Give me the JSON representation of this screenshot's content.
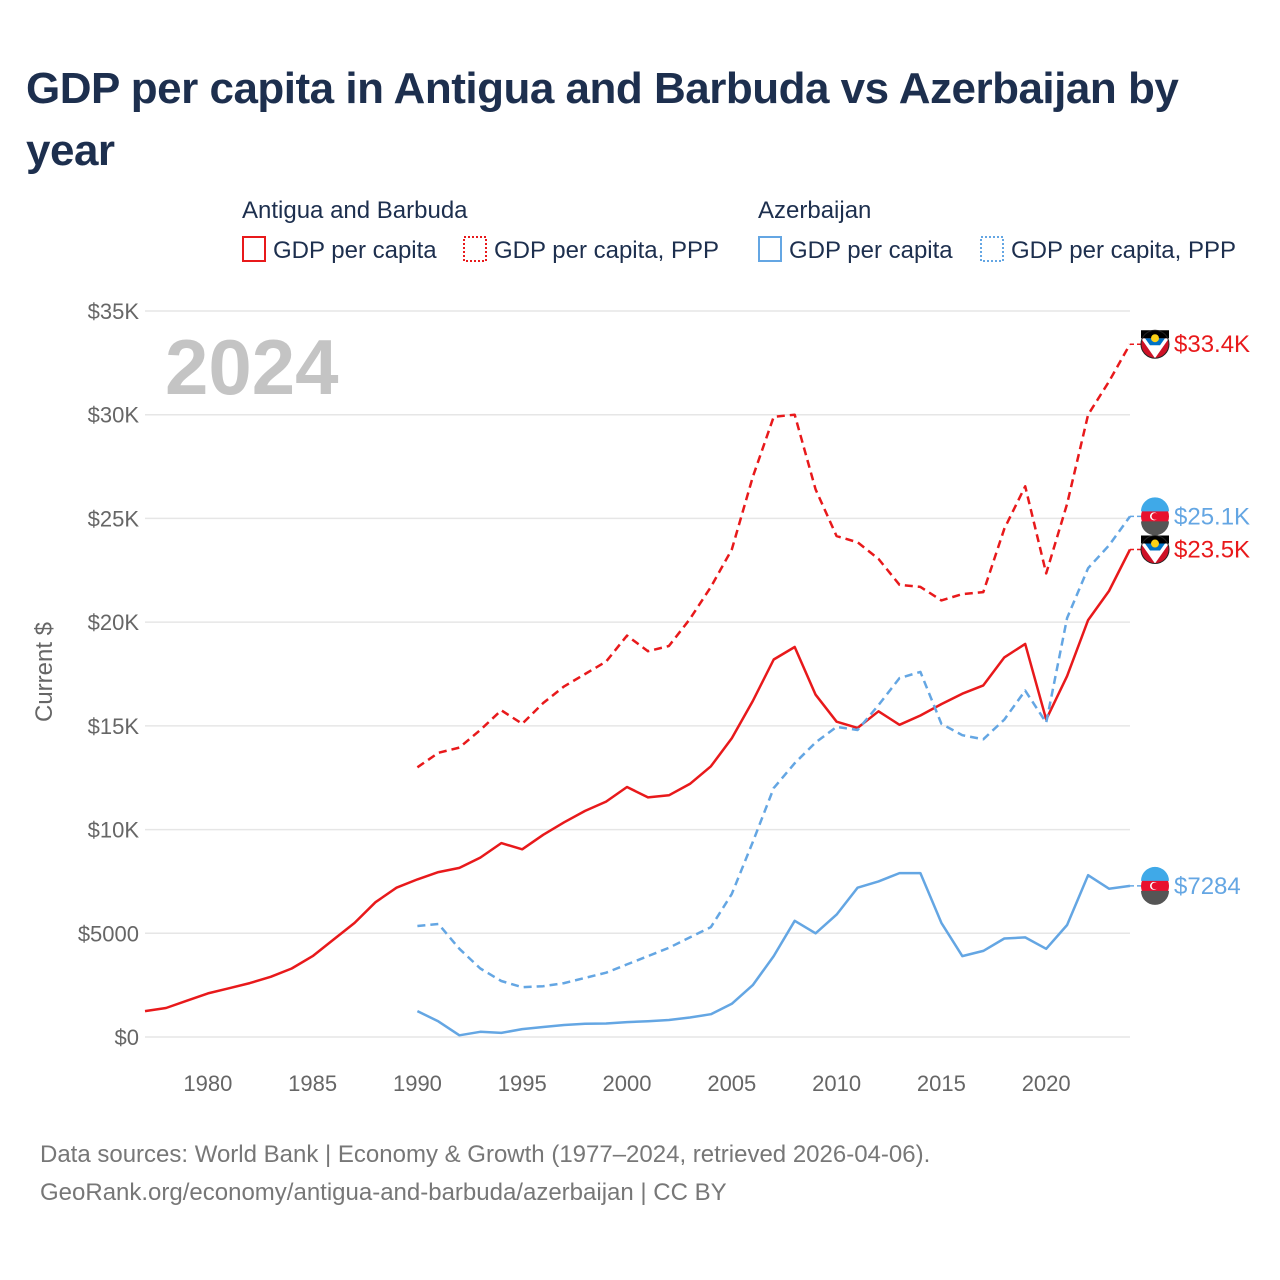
{
  "title": "GDP per capita in Antigua and Barbuda vs Azerbaijan by year",
  "year_overlay": "2024",
  "footer": {
    "line1": "Data sources: World Bank | Economy & Growth (1977–2024, retrieved 2026-04-06).",
    "line2": "GeoRank.org/economy/antigua-and-barbuda/azerbaijan | CC BY"
  },
  "colors": {
    "antigua": "#e8191b",
    "azerbaijan": "#64a6e3",
    "grid": "#e6e6e6"
  },
  "chart_data": {
    "type": "line",
    "title": "GDP per capita in Antigua and Barbuda vs Azerbaijan by year",
    "xlabel": "",
    "ylabel": "Current $",
    "xlim": [
      1977,
      2024
    ],
    "ylim": [
      0,
      35000
    ],
    "x_ticks": [
      1980,
      1985,
      1990,
      1995,
      2000,
      2005,
      2010,
      2015,
      2020
    ],
    "y_ticks": [
      0,
      5000,
      10000,
      15000,
      20000,
      25000,
      30000,
      35000
    ],
    "y_tick_labels": [
      "$0",
      "$5000",
      "$10K",
      "$15K",
      "$20K",
      "$25K",
      "$30K",
      "$35K"
    ],
    "grid": true,
    "legend_groups": [
      {
        "name": "Antigua and Barbuda",
        "items": [
          "GDP per capita",
          "GDP per capita, PPP"
        ]
      },
      {
        "name": "Azerbaijan",
        "items": [
          "GDP per capita",
          "GDP per capita, PPP"
        ]
      }
    ],
    "series": [
      {
        "name": "Antigua and Barbuda GDP per capita",
        "group": "antigua",
        "style": "solid",
        "end_label": "$23.5K",
        "x": [
          1977,
          1978,
          1979,
          1980,
          1981,
          1982,
          1983,
          1984,
          1985,
          1986,
          1987,
          1988,
          1989,
          1990,
          1991,
          1992,
          1993,
          1994,
          1995,
          1996,
          1997,
          1998,
          1999,
          2000,
          2001,
          2002,
          2003,
          2004,
          2005,
          2006,
          2007,
          2008,
          2009,
          2010,
          2011,
          2012,
          2013,
          2014,
          2015,
          2016,
          2017,
          2018,
          2019,
          2020,
          2021,
          2022,
          2023,
          2024
        ],
        "values": [
          1250,
          1400,
          1750,
          2100,
          2350,
          2600,
          2900,
          3300,
          3900,
          4700,
          5500,
          6500,
          7200,
          7600,
          7950,
          8150,
          8650,
          9350,
          9050,
          9750,
          10350,
          10900,
          11350,
          12050,
          11550,
          11650,
          12200,
          13050,
          14400,
          16200,
          18200,
          18800,
          16500,
          15200,
          14900,
          15700,
          15050,
          15500,
          16050,
          16550,
          16950,
          18300,
          18950,
          15300,
          17400,
          20100,
          21500,
          23500
        ]
      },
      {
        "name": "Antigua and Barbuda GDP per capita, PPP",
        "group": "antigua",
        "style": "dashed",
        "end_label": "$33.4K",
        "x": [
          1990,
          1991,
          1992,
          1993,
          1994,
          1995,
          1996,
          1997,
          1998,
          1999,
          2000,
          2001,
          2002,
          2003,
          2004,
          2005,
          2006,
          2007,
          2008,
          2009,
          2010,
          2011,
          2012,
          2013,
          2014,
          2015,
          2016,
          2017,
          2018,
          2019,
          2020,
          2021,
          2022,
          2023,
          2024
        ],
        "values": [
          13000,
          13700,
          13950,
          14800,
          15750,
          15100,
          16100,
          16900,
          17500,
          18100,
          19350,
          18600,
          18850,
          20150,
          21700,
          23500,
          27000,
          29900,
          30000,
          26400,
          24150,
          23850,
          23050,
          21800,
          21700,
          21050,
          21350,
          21450,
          24500,
          26550,
          22350,
          25700,
          30000,
          31600,
          33400
        ]
      },
      {
        "name": "Azerbaijan GDP per capita",
        "group": "azerbaijan",
        "style": "solid",
        "end_label": "$7284",
        "x": [
          1990,
          1991,
          1992,
          1993,
          1994,
          1995,
          1996,
          1997,
          1998,
          1999,
          2000,
          2001,
          2002,
          2003,
          2004,
          2005,
          2006,
          2007,
          2008,
          2009,
          2010,
          2011,
          2012,
          2013,
          2014,
          2015,
          2016,
          2017,
          2018,
          2019,
          2020,
          2021,
          2022,
          2023,
          2024
        ],
        "values": [
          1250,
          750,
          80,
          250,
          200,
          380,
          480,
          580,
          640,
          650,
          720,
          760,
          820,
          940,
          1100,
          1600,
          2500,
          3900,
          5600,
          5000,
          5900,
          7200,
          7500,
          7900,
          7900,
          5500,
          3900,
          4150,
          4750,
          4800,
          4250,
          5400,
          7800,
          7150,
          7284
        ]
      },
      {
        "name": "Azerbaijan GDP per capita, PPP",
        "group": "azerbaijan",
        "style": "dashed",
        "end_label": "$25.1K",
        "x": [
          1990,
          1991,
          1992,
          1993,
          1994,
          1995,
          1996,
          1997,
          1998,
          1999,
          2000,
          2001,
          2002,
          2003,
          2004,
          2005,
          2006,
          2007,
          2008,
          2009,
          2010,
          2011,
          2012,
          2013,
          2014,
          2015,
          2016,
          2017,
          2018,
          2019,
          2020,
          2021,
          2022,
          2023,
          2024
        ],
        "values": [
          5350,
          5450,
          4250,
          3300,
          2700,
          2400,
          2450,
          2600,
          2850,
          3100,
          3500,
          3900,
          4300,
          4800,
          5300,
          6900,
          9400,
          12000,
          13200,
          14200,
          14950,
          14800,
          16000,
          17300,
          17600,
          15100,
          14550,
          14350,
          15300,
          16700,
          15150,
          20200,
          22600,
          23700,
          25100
        ]
      }
    ]
  }
}
